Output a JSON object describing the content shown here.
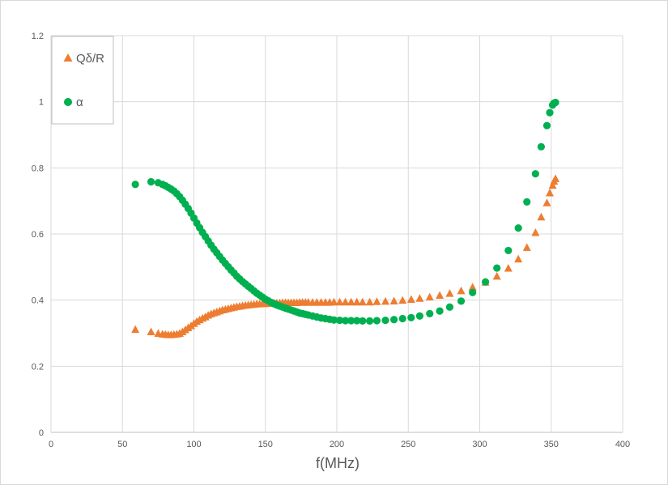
{
  "chart_data": {
    "type": "scatter",
    "xlabel": "f(MHz)",
    "ylabel": "",
    "xlim": [
      0,
      400
    ],
    "ylim": [
      0,
      1.2
    ],
    "xticks": [
      "0",
      "50",
      "100",
      "150",
      "200",
      "250",
      "300",
      "350",
      "400"
    ],
    "yticks": [
      "0",
      "0.2",
      "0.4",
      "0.6",
      "0.8",
      "1",
      "1.2"
    ],
    "grid": true,
    "legend_position": "top-left",
    "series": [
      {
        "name": "Qδ/R",
        "marker": "triangle",
        "color": "#ed7d31",
        "points": [
          [
            59,
            0.312
          ],
          [
            70,
            0.305
          ],
          [
            75,
            0.3
          ],
          [
            78,
            0.298
          ],
          [
            80,
            0.297
          ],
          [
            82,
            0.296
          ],
          [
            84,
            0.296
          ],
          [
            86,
            0.297
          ],
          [
            88,
            0.298
          ],
          [
            90,
            0.3
          ],
          [
            92,
            0.305
          ],
          [
            94,
            0.311
          ],
          [
            96,
            0.317
          ],
          [
            98,
            0.323
          ],
          [
            100,
            0.33
          ],
          [
            102,
            0.336
          ],
          [
            104,
            0.341
          ],
          [
            106,
            0.346
          ],
          [
            108,
            0.35
          ],
          [
            110,
            0.355
          ],
          [
            112,
            0.359
          ],
          [
            114,
            0.362
          ],
          [
            116,
            0.365
          ],
          [
            118,
            0.368
          ],
          [
            120,
            0.371
          ],
          [
            122,
            0.373
          ],
          [
            124,
            0.375
          ],
          [
            126,
            0.377
          ],
          [
            128,
            0.379
          ],
          [
            130,
            0.381
          ],
          [
            132,
            0.382
          ],
          [
            134,
            0.384
          ],
          [
            136,
            0.385
          ],
          [
            138,
            0.386
          ],
          [
            140,
            0.387
          ],
          [
            142,
            0.388
          ],
          [
            144,
            0.389
          ],
          [
            146,
            0.389
          ],
          [
            148,
            0.39
          ],
          [
            150,
            0.39
          ],
          [
            152,
            0.391
          ],
          [
            154,
            0.391
          ],
          [
            156,
            0.392
          ],
          [
            158,
            0.392
          ],
          [
            160,
            0.392
          ],
          [
            162,
            0.393
          ],
          [
            164,
            0.393
          ],
          [
            166,
            0.393
          ],
          [
            168,
            0.393
          ],
          [
            170,
            0.393
          ],
          [
            172,
            0.393
          ],
          [
            174,
            0.394
          ],
          [
            176,
            0.394
          ],
          [
            178,
            0.394
          ],
          [
            180,
            0.394
          ],
          [
            183,
            0.394
          ],
          [
            186,
            0.394
          ],
          [
            189,
            0.394
          ],
          [
            192,
            0.394
          ],
          [
            195,
            0.394
          ],
          [
            198,
            0.395
          ],
          [
            202,
            0.395
          ],
          [
            206,
            0.395
          ],
          [
            210,
            0.395
          ],
          [
            214,
            0.395
          ],
          [
            218,
            0.395
          ],
          [
            223,
            0.395
          ],
          [
            228,
            0.396
          ],
          [
            234,
            0.397
          ],
          [
            240,
            0.398
          ],
          [
            246,
            0.4
          ],
          [
            252,
            0.403
          ],
          [
            258,
            0.406
          ],
          [
            265,
            0.41
          ],
          [
            272,
            0.415
          ],
          [
            279,
            0.421
          ],
          [
            287,
            0.429
          ],
          [
            295,
            0.44
          ],
          [
            304,
            0.455
          ],
          [
            312,
            0.473
          ],
          [
            320,
            0.497
          ],
          [
            327,
            0.525
          ],
          [
            333,
            0.56
          ],
          [
            339,
            0.605
          ],
          [
            343,
            0.652
          ],
          [
            347,
            0.695
          ],
          [
            349,
            0.725
          ],
          [
            351,
            0.748
          ],
          [
            352,
            0.76
          ],
          [
            353,
            0.768
          ]
        ]
      },
      {
        "name": "α",
        "marker": "circle",
        "color": "#00b050",
        "points": [
          [
            59,
            0.75
          ],
          [
            70,
            0.758
          ],
          [
            75,
            0.755
          ],
          [
            78,
            0.75
          ],
          [
            80,
            0.746
          ],
          [
            82,
            0.741
          ],
          [
            84,
            0.736
          ],
          [
            86,
            0.73
          ],
          [
            88,
            0.722
          ],
          [
            90,
            0.713
          ],
          [
            92,
            0.702
          ],
          [
            94,
            0.69
          ],
          [
            96,
            0.677
          ],
          [
            98,
            0.663
          ],
          [
            100,
            0.648
          ],
          [
            102,
            0.633
          ],
          [
            104,
            0.619
          ],
          [
            106,
            0.605
          ],
          [
            108,
            0.592
          ],
          [
            110,
            0.579
          ],
          [
            112,
            0.566
          ],
          [
            114,
            0.554
          ],
          [
            116,
            0.543
          ],
          [
            118,
            0.532
          ],
          [
            120,
            0.521
          ],
          [
            122,
            0.511
          ],
          [
            124,
            0.501
          ],
          [
            126,
            0.491
          ],
          [
            128,
            0.482
          ],
          [
            130,
            0.472
          ],
          [
            132,
            0.464
          ],
          [
            134,
            0.456
          ],
          [
            136,
            0.449
          ],
          [
            138,
            0.442
          ],
          [
            140,
            0.435
          ],
          [
            142,
            0.428
          ],
          [
            144,
            0.421
          ],
          [
            146,
            0.415
          ],
          [
            148,
            0.409
          ],
          [
            150,
            0.403
          ],
          [
            152,
            0.398
          ],
          [
            154,
            0.393
          ],
          [
            156,
            0.389
          ],
          [
            158,
            0.385
          ],
          [
            160,
            0.382
          ],
          [
            162,
            0.379
          ],
          [
            164,
            0.376
          ],
          [
            166,
            0.373
          ],
          [
            168,
            0.37
          ],
          [
            170,
            0.367
          ],
          [
            172,
            0.364
          ],
          [
            174,
            0.361
          ],
          [
            176,
            0.359
          ],
          [
            178,
            0.357
          ],
          [
            180,
            0.355
          ],
          [
            183,
            0.352
          ],
          [
            186,
            0.349
          ],
          [
            189,
            0.346
          ],
          [
            192,
            0.344
          ],
          [
            195,
            0.342
          ],
          [
            198,
            0.34
          ],
          [
            202,
            0.339
          ],
          [
            206,
            0.338
          ],
          [
            210,
            0.338
          ],
          [
            214,
            0.338
          ],
          [
            218,
            0.337
          ],
          [
            223,
            0.337
          ],
          [
            228,
            0.338
          ],
          [
            234,
            0.339
          ],
          [
            240,
            0.341
          ],
          [
            246,
            0.344
          ],
          [
            252,
            0.347
          ],
          [
            258,
            0.352
          ],
          [
            265,
            0.359
          ],
          [
            272,
            0.367
          ],
          [
            279,
            0.379
          ],
          [
            287,
            0.397
          ],
          [
            295,
            0.423
          ],
          [
            304,
            0.455
          ],
          [
            312,
            0.497
          ],
          [
            320,
            0.55
          ],
          [
            327,
            0.618
          ],
          [
            333,
            0.697
          ],
          [
            339,
            0.782
          ],
          [
            343,
            0.864
          ],
          [
            347,
            0.928
          ],
          [
            349,
            0.967
          ],
          [
            351,
            0.99
          ],
          [
            352,
            0.996
          ],
          [
            353,
            0.998
          ]
        ]
      }
    ]
  }
}
